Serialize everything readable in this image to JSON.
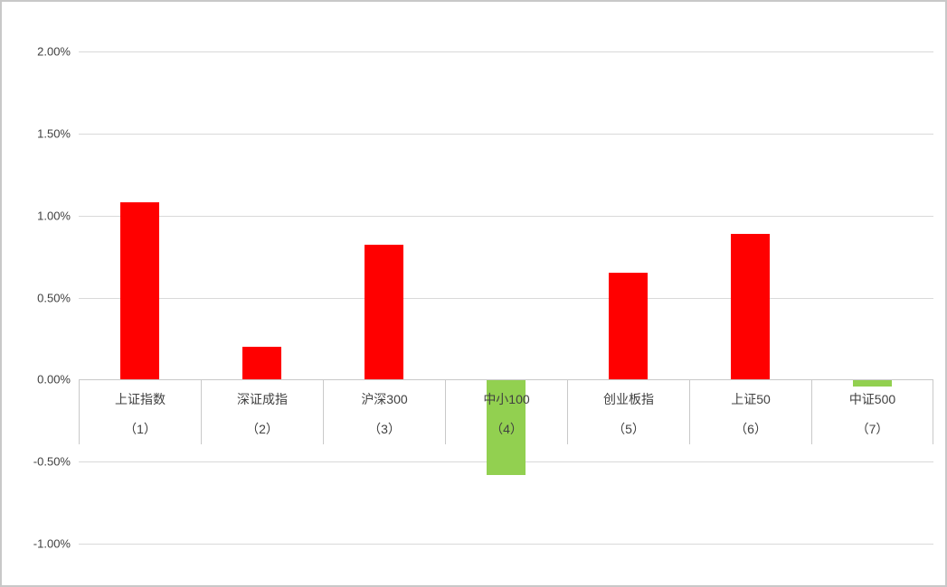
{
  "chart_data": {
    "type": "bar",
    "title": "",
    "categories": [
      {
        "name": "上证指数",
        "index_label": "（1）"
      },
      {
        "name": "深证成指",
        "index_label": "（2）"
      },
      {
        "name": "沪深300",
        "index_label": "（3）"
      },
      {
        "name": "中小100",
        "index_label": "（4）"
      },
      {
        "name": "创业板指",
        "index_label": "（5）"
      },
      {
        "name": "上证50",
        "index_label": "（6）"
      },
      {
        "name": "中证500",
        "index_label": "（7）"
      }
    ],
    "values": [
      1.08,
      0.2,
      0.82,
      -0.58,
      0.65,
      0.89,
      -0.04
    ],
    "value_unit": "percent",
    "ylim": [
      -1.0,
      2.0
    ],
    "yticks": [
      {
        "value": 2.0,
        "label": "2.00%"
      },
      {
        "value": 1.5,
        "label": "1.50%"
      },
      {
        "value": 1.0,
        "label": "1.00%"
      },
      {
        "value": 0.5,
        "label": "0.50%"
      },
      {
        "value": 0.0,
        "label": "0.00%"
      },
      {
        "value": -0.5,
        "label": "-0.50%"
      },
      {
        "value": -1.0,
        "label": "-1.00%"
      }
    ],
    "grid": true,
    "legend": "none",
    "colors": {
      "positive_bar": "#FF0000",
      "negative_bar": "#92D050",
      "gridline": "#D9D9D9",
      "axis_line": "#C9C9C9",
      "text": "#404040",
      "frame_border": "#C8C8C8",
      "background": "#FFFFFF"
    }
  }
}
